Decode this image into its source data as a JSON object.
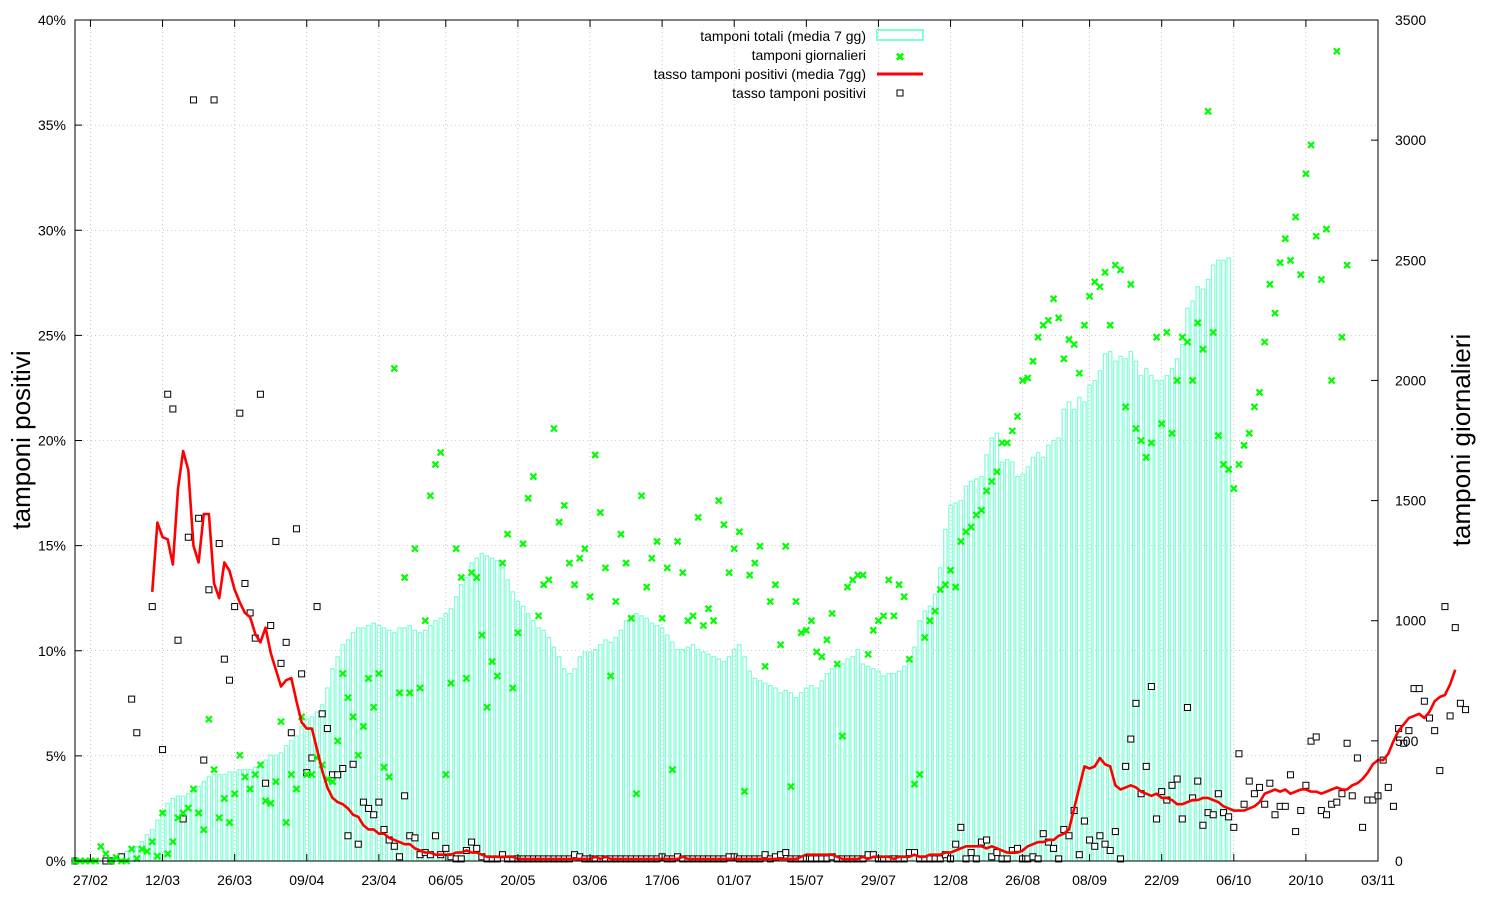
{
  "colors": {
    "bars": "#7fffd4",
    "daily_tests": "#00ff00",
    "rate_avg_line": "#ff0000",
    "rate_points": "#000000",
    "grid": "#a0a0a0"
  },
  "chart_data": {
    "type": "line",
    "title": "",
    "ylabel_left": "tamponi positivi",
    "ylabel_right": "tamponi giornalieri",
    "xlabel": "",
    "x_start": "2020-02-24",
    "x_end": "2020-11-03",
    "x_ticks": [
      "27/02",
      "12/03",
      "26/03",
      "09/04",
      "23/04",
      "06/05",
      "20/05",
      "03/06",
      "17/06",
      "01/07",
      "15/07",
      "29/07",
      "12/08",
      "26/08",
      "08/09",
      "22/09",
      "06/10",
      "20/10",
      "03/11"
    ],
    "ylim_left": [
      0,
      40
    ],
    "y_ticks_left": [
      "0%",
      "5%",
      "10%",
      "15%",
      "20%",
      "25%",
      "30%",
      "35%",
      "40%"
    ],
    "ylim_right": [
      0,
      3500
    ],
    "y_ticks_right": [
      "0",
      "500",
      "1000",
      "1500",
      "2000",
      "2500",
      "3000",
      "3500"
    ],
    "grid": true,
    "legend_position": "top-center",
    "legend": [
      {
        "label": "tamponi totali (media 7 gg)",
        "style": "box"
      },
      {
        "label": "tamponi giornalieri",
        "style": "cross"
      },
      {
        "label": "tasso tamponi positivi (media 7gg)",
        "style": "line"
      },
      {
        "label": "tasso tamponi positivi",
        "style": "square"
      }
    ],
    "series": [
      {
        "name": "tamponi totali (media 7 gg)",
        "axis": "right",
        "values": [
          0,
          0,
          0,
          0,
          0,
          0,
          10,
          15,
          20,
          30,
          40,
          50,
          60,
          80,
          110,
          130,
          170,
          210,
          240,
          260,
          270,
          270,
          280,
          290,
          310,
          330,
          350,
          360,
          360,
          360,
          370,
          370,
          380,
          380,
          380,
          390,
          400,
          420,
          440,
          440,
          450,
          480,
          500,
          520,
          560,
          590,
          600,
          620,
          650,
          720,
          800,
          850,
          900,
          920,
          950,
          970,
          970,
          980,
          990,
          980,
          970,
          960,
          950,
          970,
          970,
          980,
          960,
          950,
          960,
          980,
          1000,
          1010,
          1030,
          1050,
          1100,
          1150,
          1180,
          1240,
          1260,
          1280,
          1270,
          1260,
          1250,
          1220,
          1170,
          1120,
          1080,
          1060,
          1030,
          1000,
          970,
          960,
          930,
          890,
          850,
          800,
          780,
          800,
          850,
          870,
          870,
          880,
          900,
          920,
          910,
          930,
          960,
          1000,
          1020,
          1030,
          1020,
          1010,
          990,
          980,
          970,
          940,
          910,
          880,
          880,
          890,
          900,
          880,
          870,
          860,
          850,
          840,
          830,
          850,
          880,
          900,
          850,
          790,
          760,
          750,
          740,
          730,
          720,
          700,
          710,
          700,
          680,
          700,
          720,
          730,
          720,
          750,
          780,
          800,
          810,
          820,
          840,
          850,
          880,
          820,
          810,
          800,
          790,
          770,
          780,
          780,
          790,
          810,
          820,
          890,
          1000,
          1040,
          1060,
          1110,
          1220,
          1380,
          1480,
          1490,
          1500,
          1560,
          1580,
          1590,
          1600,
          1690,
          1760,
          1780,
          1660,
          1670,
          1660,
          1600,
          1610,
          1640,
          1680,
          1700,
          1680,
          1730,
          1750,
          1760,
          1880,
          1910,
          1880,
          1930,
          1910,
          1980,
          2000,
          2040,
          2110,
          2120,
          2080,
          2100,
          2090,
          2120,
          2080,
          2020,
          2050,
          2020,
          2000,
          2000,
          2020,
          2050,
          2090,
          2150,
          2300,
          2330,
          2390,
          2380,
          2420,
          2480,
          2500,
          2500,
          2510
        ]
      },
      {
        "name": "tamponi giornalieri",
        "axis": "right",
        "values": [
          0,
          0,
          0,
          0,
          0,
          60,
          30,
          0,
          15,
          0,
          0,
          50,
          10,
          50,
          40,
          80,
          20,
          200,
          30,
          80,
          180,
          200,
          220,
          300,
          200,
          130,
          590,
          380,
          180,
          260,
          160,
          280,
          440,
          350,
          300,
          360,
          400,
          250,
          240,
          330,
          580,
          160,
          360,
          300,
          600,
          360,
          360,
          430,
          400,
          340,
          330,
          500,
          780,
          680,
          600,
          440,
          560,
          760,
          640,
          780,
          390,
          350,
          2050,
          700,
          1180,
          700,
          1300,
          720,
          1000,
          1520,
          1650,
          1700,
          360,
          740,
          1300,
          1180,
          760,
          1200,
          1180,
          940,
          640,
          830,
          770,
          1240,
          1360,
          720,
          950,
          1320,
          1510,
          1600,
          1020,
          1150,
          1170,
          1800,
          1410,
          1480,
          1240,
          1150,
          1260,
          1300,
          1100,
          1690,
          1450,
          1220,
          770,
          1080,
          1360,
          1240,
          1010,
          280,
          1520,
          1140,
          1260,
          1330,
          1010,
          1220,
          380,
          1330,
          1200,
          1000,
          1020,
          1430,
          980,
          1050,
          1000,
          1500,
          1400,
          1200,
          1300,
          1370,
          290,
          1190,
          1240,
          1310,
          810,
          1080,
          1150,
          900,
          1310,
          310,
          1080,
          950,
          960,
          1000,
          870,
          850,
          920,
          1030,
          820,
          520,
          1140,
          1170,
          1190,
          1190,
          860,
          960,
          1000,
          1020,
          1170,
          1020,
          1150,
          1100,
          840,
          320,
          360,
          930,
          1000,
          1040,
          1130,
          1150,
          1210,
          1140,
          1330,
          1370,
          1390,
          1440,
          1460,
          1540,
          1580,
          1620,
          1740,
          1740,
          1790,
          1850,
          2000,
          2010,
          2080,
          2180,
          2230,
          2250,
          2340,
          2260,
          2090,
          2170,
          2150,
          2030,
          2230,
          2350,
          2410,
          2390,
          2450,
          2230,
          2480,
          2460,
          1890,
          2400,
          1800,
          1750,
          1680,
          1740,
          2180,
          1820,
          2200,
          1780,
          2000,
          2180,
          2160,
          2000,
          2240,
          2130,
          3120,
          2200,
          1770,
          1650,
          1630,
          1550,
          1650,
          1730,
          1780,
          1890,
          1950,
          2160,
          2400,
          2280,
          2490,
          2590,
          2500,
          2680,
          2440,
          2860,
          2980,
          2600,
          2420,
          2630,
          2000,
          3370,
          2180,
          2480
        ]
      },
      {
        "name": "tasso tamponi positivi (media 7gg)",
        "axis": "left",
        "values": [
          null,
          null,
          null,
          null,
          null,
          null,
          null,
          null,
          null,
          null,
          null,
          null,
          null,
          null,
          null,
          12.8,
          16.1,
          15.4,
          15.3,
          14.1,
          17.7,
          19.5,
          18.6,
          15.0,
          14.2,
          16.5,
          16.5,
          13.2,
          12.5,
          14.2,
          13.8,
          12.9,
          12.3,
          11.8,
          11.6,
          10.8,
          10.4,
          11.1,
          9.9,
          9.1,
          8.3,
          8.6,
          8.7,
          7.6,
          6.6,
          6.3,
          6.3,
          5.3,
          4.3,
          3.5,
          3.0,
          2.8,
          2.7,
          2.5,
          2.2,
          2.1,
          1.7,
          1.5,
          1.5,
          1.3,
          1.3,
          1.1,
          1.0,
          0.9,
          0.8,
          0.8,
          0.6,
          0.5,
          0.4,
          0.4,
          0.3,
          0.3,
          0.3,
          0.3,
          0.4,
          0.4,
          0.5,
          0.4,
          0.4,
          0.3,
          0.2,
          0.2,
          0.2,
          0.2,
          0.2,
          0.2,
          0.1,
          0.1,
          0.1,
          0.1,
          0.1,
          0.1,
          0.1,
          0.1,
          0.1,
          0.1,
          0.1,
          0.1,
          0.1,
          0.1,
          0.1,
          0.2,
          0.1,
          0.2,
          0.1,
          0.1,
          0.1,
          0.1,
          0.1,
          0.1,
          0.1,
          0.1,
          0.1,
          0.1,
          0.1,
          0.1,
          0.1,
          0.1,
          0.2,
          0.1,
          0.1,
          0.1,
          0.1,
          0.1,
          0.1,
          0.1,
          0.1,
          0.1,
          0.1,
          0.1,
          0.1,
          0.1,
          0.1,
          0.1,
          0.1,
          0.1,
          0.1,
          0.1,
          0.1,
          0.1,
          0.1,
          0.2,
          0.3,
          0.3,
          0.3,
          0.3,
          0.3,
          0.3,
          0.2,
          0.1,
          0.1,
          0.1,
          0.1,
          0.2,
          0.1,
          0.2,
          0.2,
          0.2,
          0.2,
          0.1,
          0.2,
          0.2,
          0.2,
          0.3,
          0.2,
          0.2,
          0.3,
          0.3,
          0.3,
          0.4,
          0.4,
          0.5,
          0.6,
          0.7,
          0.7,
          0.7,
          0.7,
          0.6,
          0.7,
          0.6,
          0.5,
          0.4,
          0.4,
          0.4,
          0.5,
          0.7,
          0.8,
          0.9,
          0.9,
          1.0,
          1.0,
          1.2,
          1.3,
          1.5,
          2.5,
          3.5,
          4.5,
          4.4,
          4.5,
          4.9,
          4.6,
          4.5,
          3.6,
          3.4,
          3.5,
          3.6,
          3.5,
          3.3,
          3.2,
          3.1,
          3.2,
          3.0,
          3.0,
          2.9,
          2.7,
          2.7,
          2.8,
          2.9,
          2.9,
          3.0,
          3.0,
          2.9,
          2.8,
          2.6,
          2.5,
          2.4,
          2.4,
          2.4,
          2.5,
          2.6,
          2.8,
          3.2,
          3.3,
          3.4,
          3.3,
          3.4,
          3.2,
          3.3,
          3.4,
          3.4,
          3.3,
          3.3,
          3.2,
          3.3,
          3.4,
          3.5,
          3.4,
          3.4,
          3.6,
          3.7,
          3.9,
          4.2,
          4.6,
          4.8,
          4.8,
          5.1,
          5.7,
          6.2,
          6.5,
          6.8,
          6.9,
          7.0,
          6.8,
          7.1,
          7.6,
          7.8,
          7.9,
          8.4,
          9.1
        ]
      },
      {
        "name": "tasso tamponi positivi",
        "axis": "left",
        "values": [
          0,
          null,
          null,
          null,
          null,
          null,
          0,
          0,
          null,
          0.2,
          null,
          7.7,
          6.1,
          null,
          null,
          12.1,
          null,
          5.3,
          22.2,
          21.5,
          10.5,
          2.0,
          15.4,
          36.2,
          16.3,
          4.8,
          12.9,
          36.2,
          15.1,
          9.6,
          8.6,
          12.1,
          21.3,
          13.2,
          11.8,
          10.6,
          22.2,
          3.7,
          11.2,
          15.2,
          9.4,
          10.4,
          6.1,
          15.8,
          8.9,
          4.2,
          4.9,
          12.1,
          7.0,
          6.3,
          4.1,
          4.1,
          4.4,
          1.2,
          4.6,
          0.8,
          2.8,
          2.5,
          2.2,
          2.8,
          1.5,
          1.0,
          0.7,
          0.2,
          3.1,
          1.2,
          1.1,
          0.3,
          0.4,
          0.3,
          1.2,
          0.3,
          0.6,
          0.2,
          0.1,
          0.1,
          0.5,
          0.9,
          0.6,
          0.2,
          0.1,
          0.1,
          0.1,
          0.3,
          0.1,
          0.1,
          0.1,
          0.1,
          0.1,
          0.1,
          0.1,
          0.1,
          0.1,
          0.1,
          0.1,
          0.1,
          0.1,
          0.3,
          0.2,
          0.1,
          0.1,
          0.1,
          0.1,
          0.1,
          0.1,
          0.1,
          0.1,
          0.1,
          0.1,
          0.1,
          0.1,
          0.1,
          0.1,
          0.1,
          0.2,
          0.1,
          0.1,
          0.2,
          0.1,
          0.1,
          0.1,
          0.1,
          0.1,
          0.1,
          0.1,
          0.1,
          0.1,
          0.2,
          0.2,
          0.1,
          0.1,
          0.1,
          0.1,
          0.1,
          0.3,
          0.1,
          0.2,
          0.3,
          0.4,
          0.1,
          0.1,
          0.1,
          0.1,
          0.1,
          0.1,
          0.1,
          0.1,
          0.2,
          0.1,
          0.1,
          0.1,
          0.1,
          0.1,
          0.1,
          0.3,
          0.3,
          0.1,
          0.1,
          0.1,
          0.1,
          0.1,
          0.1,
          0.4,
          0.4,
          0.1,
          0.1,
          0.1,
          0.1,
          0.1,
          0.3,
          0.1,
          0.8,
          1.6,
          0.1,
          0.4,
          0.1,
          0.9,
          1.0,
          0.2,
          0.4,
          0.1,
          0.1,
          0.5,
          0.6,
          0.1,
          0.1,
          0.2,
          0.1,
          1.3,
          0.9,
          0.6,
          0.1,
          1.5,
          1.2,
          2.4,
          0.3,
          1.9,
          1.0,
          0.7,
          1.2,
          0.8,
          0.5,
          1.4,
          0.1,
          4.5,
          5.8,
          7.5,
          3.2,
          4.5,
          8.3,
          2.0,
          3.3,
          2.9,
          3.6,
          3.9,
          2.0,
          7.3,
          3.0,
          3.8,
          1.7,
          2.3,
          2.2,
          3.2,
          2.3,
          2.1,
          1.6,
          5.1,
          2.7,
          3.8,
          3.2,
          3.5,
          2.7,
          3.7,
          2.2,
          2.6,
          2.6,
          4.1,
          1.4,
          2.4,
          3.6,
          5.7,
          5.9,
          2.4,
          2.2,
          2.7,
          2.8,
          3.2,
          5.6,
          3.1,
          4.9,
          1.6,
          2.9,
          2.9,
          3.1,
          4.8,
          3.5,
          2.6,
          6.3,
          5.6,
          6.2,
          8.2,
          8.2,
          7.6,
          6.8,
          6.2,
          4.3,
          12.1,
          6.9,
          11.1,
          7.5,
          7.2
        ]
      }
    ]
  }
}
